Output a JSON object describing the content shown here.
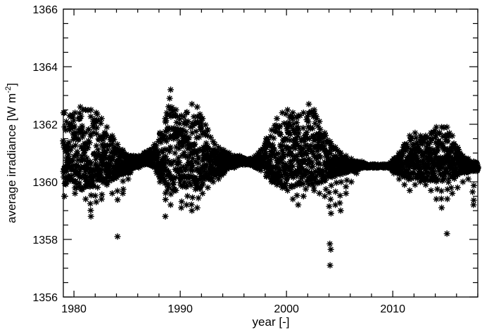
{
  "chart_data": {
    "type": "scatter",
    "title": "",
    "xlabel": "year [-]",
    "ylabel": "average irradiance [W m",
    "ylabel_sup": "-2",
    "ylabel_close": "]",
    "xlim": [
      1979,
      2018
    ],
    "ylim": [
      1356,
      1366
    ],
    "xticks": [
      1980,
      1990,
      2000,
      2010
    ],
    "yticks": [
      1356,
      1358,
      1360,
      1362,
      1364,
      1366
    ],
    "xtick_labels": [
      "1980",
      "1990",
      "2000",
      "2010"
    ],
    "ytick_labels": [
      "1356",
      "1358",
      "1360",
      "1362",
      "1364",
      "1366"
    ],
    "grid": false,
    "marker": "*",
    "marker_color": "#000000",
    "background": "#ffffff",
    "series": [
      {
        "x": [
          1979.1,
          1979.6,
          1980.1,
          1980.6,
          1981.1,
          1981.6,
          1982.1,
          1982.6,
          1983.1,
          1983.6,
          1984.1,
          1984.6,
          1985.1,
          1985.6,
          1986.1,
          1986.6,
          1987.1,
          1987.6,
          1988.1,
          1988.6,
          1989.1,
          1989.6,
          1990.1,
          1990.6,
          1991.1,
          1991.6,
          1992.1,
          1992.6,
          1993.1,
          1993.6,
          1994.1,
          1994.6,
          1995.1,
          1995.6,
          1996.1,
          1996.6,
          1997.1,
          1997.6,
          1998.1,
          1998.6,
          1999.1,
          1999.6,
          2000.1,
          2000.6,
          2001.1,
          2001.6,
          2002.1,
          2002.6,
          2003.1,
          2003.6,
          2004.1,
          2004.6,
          2005.1,
          2005.6,
          2006.1,
          2006.6,
          2007.1,
          2007.6,
          2008.1,
          2008.6,
          2009.1,
          2009.6,
          2010.1,
          2010.6,
          2011.1,
          2011.6,
          2012.1,
          2012.6,
          2013.1,
          2013.6,
          2014.1,
          2014.6,
          2015.1,
          2015.6,
          2016.1,
          2016.6,
          2017.1,
          2017.6
        ],
        "high": [
          1362.4,
          1362.3,
          1362.4,
          1362.6,
          1362.5,
          1362.5,
          1362.4,
          1362.2,
          1361.9,
          1361.6,
          1361.3,
          1361.1,
          1360.9,
          1360.9,
          1360.9,
          1361.0,
          1361.1,
          1361.3,
          1361.7,
          1362.2,
          1363.2,
          1362.5,
          1362.3,
          1362.4,
          1362.7,
          1362.6,
          1362.2,
          1361.8,
          1361.4,
          1361.2,
          1361.1,
          1361.0,
          1360.9,
          1360.9,
          1360.8,
          1360.8,
          1360.9,
          1361.1,
          1361.5,
          1361.8,
          1362.2,
          1362.4,
          1362.5,
          1362.4,
          1362.3,
          1362.4,
          1362.7,
          1362.5,
          1362.1,
          1361.7,
          1361.4,
          1361.2,
          1361.0,
          1360.9,
          1360.8,
          1360.7,
          1360.7,
          1360.6,
          1360.6,
          1360.6,
          1360.6,
          1360.6,
          1360.8,
          1361.0,
          1361.3,
          1361.6,
          1361.7,
          1361.6,
          1361.6,
          1361.7,
          1361.9,
          1361.9,
          1361.9,
          1361.6,
          1361.2,
          1360.9,
          1360.8,
          1360.7
        ],
        "low": [
          1359.5,
          1360.1,
          1359.6,
          1359.8,
          1359.4,
          1358.8,
          1359.3,
          1359.4,
          1359.9,
          1359.6,
          1358.1,
          1359.6,
          1360.1,
          1360.5,
          1360.5,
          1360.6,
          1360.6,
          1360.5,
          1360.0,
          1358.8,
          1359.2,
          1359.7,
          1359.1,
          1359.2,
          1359.0,
          1359.1,
          1359.6,
          1359.8,
          1360.0,
          1360.1,
          1360.3,
          1360.5,
          1360.5,
          1360.6,
          1360.6,
          1360.6,
          1360.5,
          1360.4,
          1360.2,
          1360.0,
          1359.9,
          1359.8,
          1359.7,
          1359.4,
          1359.2,
          1359.5,
          1359.9,
          1359.7,
          1359.6,
          1359.5,
          1357.1,
          1359.2,
          1359.0,
          1359.6,
          1360.0,
          1360.3,
          1360.5,
          1360.5,
          1360.5,
          1360.5,
          1360.5,
          1360.5,
          1360.3,
          1360.1,
          1359.9,
          1359.7,
          1359.9,
          1360.0,
          1359.9,
          1359.7,
          1359.4,
          1359.1,
          1358.2,
          1359.6,
          1359.8,
          1360.0,
          1360.1,
          1359.2
        ]
      }
    ]
  }
}
